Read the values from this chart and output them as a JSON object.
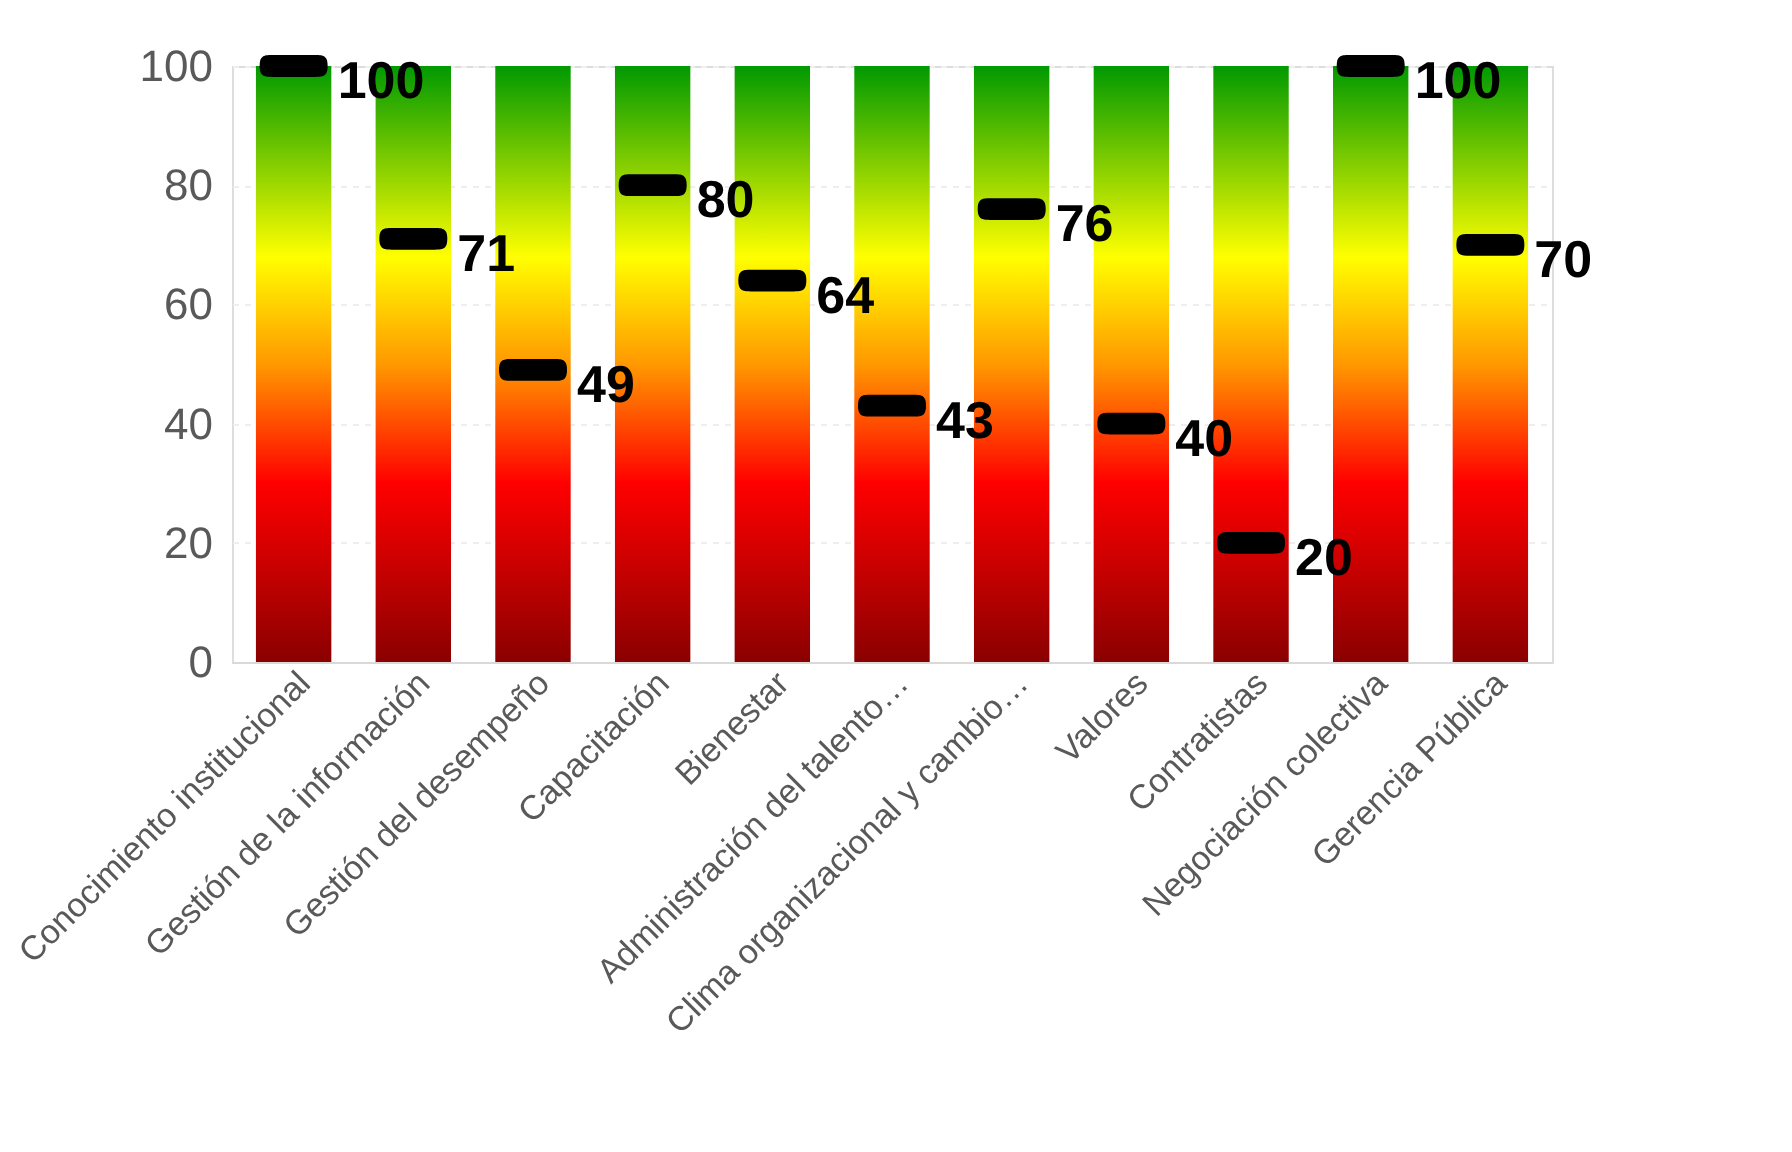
{
  "chart_data": {
    "type": "bar",
    "categories": [
      "Conocimiento institucional",
      "Gestión de la información",
      "Gestión del desempeño",
      "Capacitación",
      "Bienestar",
      "Administración del talento…",
      "Clima organizacional y cambio…",
      "Valores",
      "Contratistas",
      "Negociación colectiva",
      "Gerencia Pública"
    ],
    "series": [
      {
        "values": [
          100,
          100,
          100,
          100,
          100,
          100,
          100,
          100,
          100,
          100,
          100
        ]
      },
      {
        "type": "scatter",
        "color": "#000000",
        "values": [
          100,
          71,
          49,
          80,
          64,
          43,
          76,
          40,
          20,
          100,
          70
        ],
        "value_labels": [
          "100",
          "71",
          "49",
          "80",
          "64",
          "43",
          "76",
          "40",
          "20",
          "100",
          "70"
        ]
      }
    ],
    "ylim": [
      0,
      100
    ],
    "yticks": [
      0,
      20,
      40,
      60,
      80,
      100
    ],
    "grid": "y"
  }
}
